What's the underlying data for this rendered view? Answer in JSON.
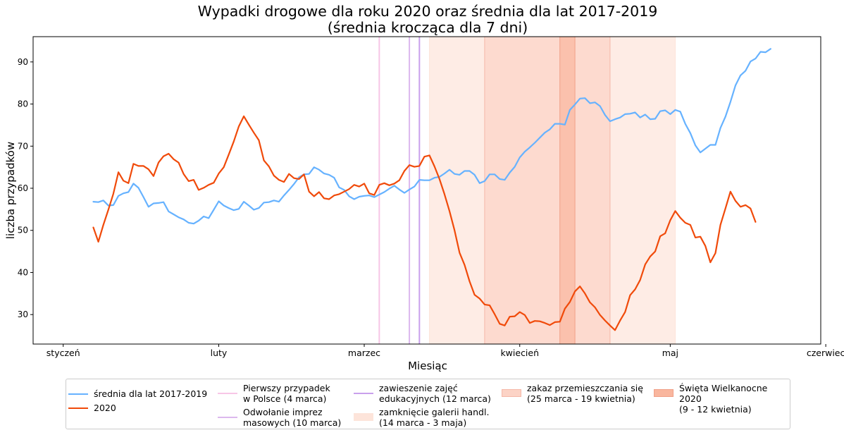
{
  "chart_data": {
    "type": "line",
    "title": "Wypadki drogowe dla roku 2020 oraz średnia dla lat 2017-2019",
    "subtitle": "(średnia krocząca dla 7 dni)",
    "xlabel": "Miesiąc",
    "ylabel": "liczba przypadków",
    "x_start": "styczeń 1",
    "x_unit": "day of year (0 = 1 stycznia)",
    "xlim": [
      -6,
      151
    ],
    "ylim": [
      23,
      96
    ],
    "yticks": [
      30,
      40,
      50,
      60,
      70,
      80,
      90
    ],
    "xticks": [
      {
        "day": 0,
        "label": "styczeń"
      },
      {
        "day": 31,
        "label": "luty"
      },
      {
        "day": 60,
        "label": "marzec"
      },
      {
        "day": 91,
        "label": "kwiecień"
      },
      {
        "day": 121,
        "label": "maj"
      },
      {
        "day": 152,
        "label": "czerwiec"
      }
    ],
    "series": [
      {
        "name": "średnia dla lat 2017-2019",
        "color": "#66b2ff",
        "x_start": 6,
        "values": [
          56.8,
          56.7,
          57.1,
          55.9,
          56.0,
          58.2,
          58.8,
          59.1,
          61.1,
          60.1,
          57.9,
          55.6,
          56.4,
          56.5,
          56.7,
          54.5,
          53.8,
          53.1,
          52.6,
          51.8,
          51.6,
          52.3,
          53.3,
          52.9,
          54.9,
          56.9,
          55.9,
          55.3,
          54.8,
          55.1,
          56.8,
          55.9,
          54.9,
          55.3,
          56.6,
          56.7,
          57.1,
          56.8,
          58.3,
          59.6,
          61.0,
          62.6,
          63.3,
          63.4,
          65.0,
          64.4,
          63.5,
          63.2,
          62.5,
          60.2,
          59.6,
          58.1,
          57.4,
          58.0,
          58.2,
          58.3,
          57.9,
          58.5,
          59.1,
          59.9,
          60.6,
          59.7,
          58.9,
          59.7,
          60.4,
          62.0,
          61.9,
          61.9,
          62.5,
          62.7,
          63.5,
          64.4,
          63.4,
          63.2,
          64.1,
          64.1,
          63.2,
          61.2,
          61.7,
          63.3,
          63.3,
          62.2,
          62.0,
          63.7,
          65.1,
          67.3,
          68.7,
          69.7,
          70.8,
          72.0,
          73.2,
          74.0,
          75.3,
          75.3,
          75.1,
          78.6,
          79.9,
          81.3,
          81.4,
          80.2,
          80.4,
          79.5,
          77.4,
          75.9,
          76.4,
          76.8,
          77.6,
          77.7,
          78.0,
          76.8,
          77.5,
          76.4,
          76.5,
          78.3,
          78.5,
          77.6,
          78.6,
          78.2,
          75.3,
          73.1,
          70.2,
          68.5,
          69.4,
          70.3,
          70.3,
          74.3,
          77.0,
          80.5,
          84.4,
          86.8,
          87.9,
          90.1,
          90.8,
          92.4,
          92.3,
          93.1
        ]
      },
      {
        "name": "2020",
        "color": "#f04a0a",
        "x_start": 6,
        "values": [
          50.7,
          47.3,
          51.3,
          54.9,
          58.7,
          63.8,
          61.8,
          61.2,
          65.8,
          65.3,
          65.3,
          64.5,
          62.9,
          66.1,
          67.6,
          68.2,
          66.9,
          66.1,
          63.4,
          61.7,
          62.0,
          59.6,
          60.1,
          60.8,
          61.3,
          63.5,
          65.0,
          68.0,
          71.1,
          74.7,
          77.1,
          75.1,
          73.2,
          71.4,
          66.6,
          65.2,
          63.0,
          62.0,
          61.5,
          63.4,
          62.4,
          62.2,
          63.3,
          59.2,
          58.1,
          59.1,
          57.6,
          57.4,
          58.3,
          58.6,
          59.2,
          59.8,
          60.8,
          60.4,
          61.1,
          58.8,
          58.4,
          60.8,
          61.2,
          60.7,
          61.1,
          61.9,
          64.1,
          65.5,
          65.1,
          65.3,
          67.5,
          67.8,
          65.2,
          62.2,
          58.6,
          54.6,
          50.0,
          44.7,
          41.8,
          37.9,
          34.7,
          33.8,
          32.4,
          32.2,
          30.1,
          27.8,
          27.4,
          29.5,
          29.6,
          30.6,
          29.9,
          28.0,
          28.5,
          28.4,
          28.0,
          27.5,
          28.2,
          28.3,
          31.4,
          33.0,
          35.5,
          36.7,
          35.0,
          32.9,
          31.7,
          29.9,
          28.6,
          27.4,
          26.3,
          28.6,
          30.6,
          34.6,
          36.0,
          38.2,
          41.9,
          43.8,
          45.0,
          48.6,
          49.3,
          52.4,
          54.6,
          53.0,
          51.8,
          51.3,
          48.3,
          48.5,
          46.3,
          42.4,
          44.6,
          51.3,
          55.2,
          59.2,
          57.0,
          55.6,
          56.0,
          55.2,
          52.0
        ]
      }
    ],
    "vlines": [
      {
        "name": "Pierwszy przypadek\nw Polsce (4 marca)",
        "day": 63,
        "color": "#f7c6e6"
      },
      {
        "name": "Odwołanie imprez\nmasowych (10 marca)",
        "day": 69,
        "color": "#dcb8ee"
      },
      {
        "name": "zawieszenie zajęć\nedukacyjnych (12 marca)",
        "day": 71,
        "color": "#c9a0ec"
      }
    ],
    "spans": [
      {
        "name": "zamknięcie galerii handl.\n(14 marca - 3 maja)",
        "from": 73,
        "to": 122,
        "color": "#fde4da",
        "edge": "#fde4da"
      },
      {
        "name": "zakaz przemieszczania się\n(25 marca - 19 kwietnia)",
        "from": 84,
        "to": 109,
        "color": "#fcd3c6",
        "edge": "#f5b8a8"
      },
      {
        "name": "Święta Wielkanocne 2020\n(9 - 12 kwietnia)",
        "from": 99,
        "to": 102,
        "color": "#f9b69e",
        "edge": "#f0a088"
      }
    ]
  }
}
